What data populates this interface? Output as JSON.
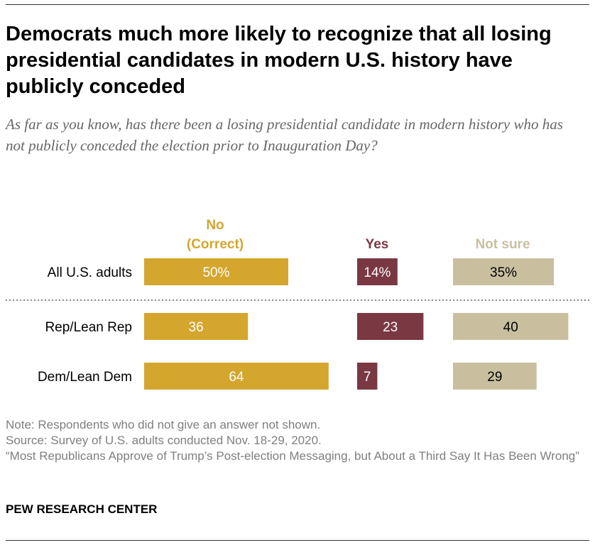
{
  "title": "Democrats much more likely to recognize that all losing presidential candidates in modern U.S. history have publicly conceded",
  "subtitle": "As far as you know, has there been a losing presidential candidate in modern history who has not publicly conceded the election prior to Inauguration Day?",
  "chart_data": {
    "type": "bar",
    "orientation": "horizontal",
    "stacked": false,
    "categories": [
      "All U.S. adults",
      "Rep/Lean Rep",
      "Dem/Lean Dem"
    ],
    "series": [
      {
        "name": "No (Correct)",
        "name_lines": [
          "No",
          "(Correct)"
        ],
        "color": "#d4a62e",
        "values": [
          50,
          36,
          64
        ],
        "labels": [
          "50%",
          "36",
          "64"
        ],
        "label_color": "#ffffff"
      },
      {
        "name": "Yes",
        "name_lines": [
          "Yes"
        ],
        "color": "#7a3843",
        "values": [
          14,
          23,
          7
        ],
        "labels": [
          "14%",
          "23",
          "7"
        ],
        "label_color": "#ffffff"
      },
      {
        "name": "Not sure",
        "name_lines": [
          "Not sure"
        ],
        "color": "#c9bf9f",
        "values": [
          35,
          40,
          29
        ],
        "labels": [
          "35%",
          "40",
          "29"
        ],
        "label_color": "#000000"
      }
    ],
    "unit": "%",
    "grid": false,
    "separator_after_first_row": true
  },
  "notes": [
    "Note: Respondents who did not give an answer not shown.",
    "Source: Survey of U.S. adults conducted Nov. 18-29, 2020.",
    "“Most Republicans Approve of Trump’s Post-election Messaging, but About a Third Say It Has Been Wrong”"
  ],
  "brand": "PEW RESEARCH CENTER"
}
